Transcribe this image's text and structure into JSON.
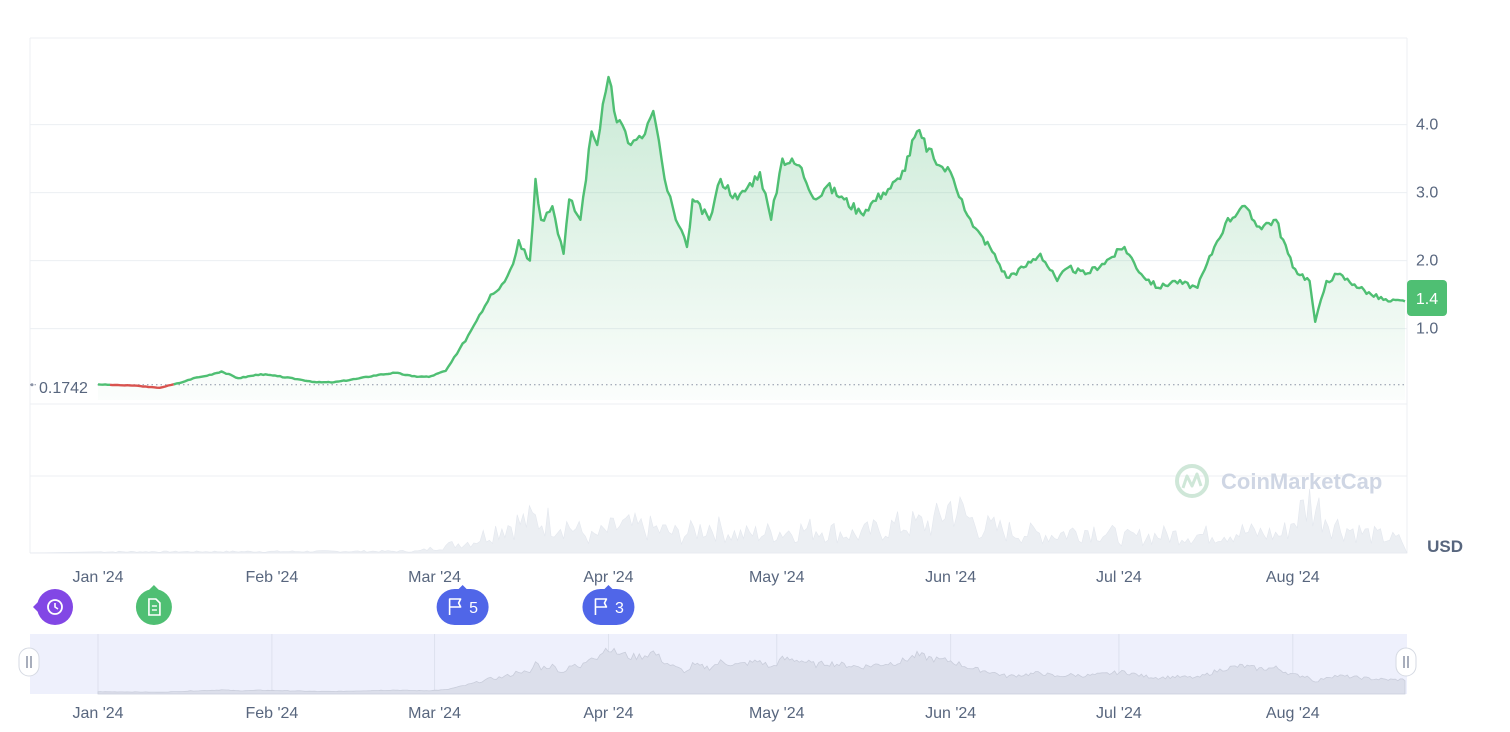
{
  "chart_data": {
    "type": "area",
    "currency": "USD",
    "baseline_label": "0.1742",
    "baseline_value": 0.1742,
    "current_price_label": "1.4",
    "current_price": 1.4,
    "ylim": [
      -0.05,
      4.95
    ],
    "y_ticks": [
      "1.0",
      "2.0",
      "3.0",
      "4.0"
    ],
    "y_tick_values": [
      1.0,
      2.0,
      3.0,
      4.0
    ],
    "x_range": [
      "2024-01-01",
      "2024-08-21"
    ],
    "x_ticks": [
      "Jan '24",
      "Feb '24",
      "Mar '24",
      "Apr '24",
      "May '24",
      "Jun '24",
      "Jul '24",
      "Aug '24"
    ],
    "x_tick_dates": [
      "2024-01-01",
      "2024-02-01",
      "2024-03-01",
      "2024-04-01",
      "2024-05-01",
      "2024-06-01",
      "2024-07-01",
      "2024-08-01"
    ],
    "grid": true,
    "colors": {
      "up": "#16c784",
      "line": "#4fbf73",
      "down": "#d9534f",
      "fill": "#3fb36a",
      "volume": "#eceff3",
      "navigator": "#eef0fc"
    },
    "price": {
      "x": [
        "2024-01-01",
        "2024-01-04",
        "2024-01-08",
        "2024-01-10",
        "2024-01-12",
        "2024-01-14",
        "2024-01-16",
        "2024-01-18",
        "2024-01-20",
        "2024-01-23",
        "2024-01-26",
        "2024-01-30",
        "2024-02-02",
        "2024-02-06",
        "2024-02-09",
        "2024-02-12",
        "2024-02-16",
        "2024-02-20",
        "2024-02-23",
        "2024-02-26",
        "2024-02-29",
        "2024-03-03",
        "2024-03-05",
        "2024-03-07",
        "2024-03-09",
        "2024-03-11",
        "2024-03-13",
        "2024-03-15",
        "2024-03-16",
        "2024-03-18",
        "2024-03-19",
        "2024-03-20",
        "2024-03-22",
        "2024-03-24",
        "2024-03-25",
        "2024-03-27",
        "2024-03-29",
        "2024-03-30",
        "2024-03-31",
        "2024-04-01",
        "2024-04-02",
        "2024-04-04",
        "2024-04-05",
        "2024-04-07",
        "2024-04-09",
        "2024-04-11",
        "2024-04-13",
        "2024-04-15",
        "2024-04-16",
        "2024-04-19",
        "2024-04-21",
        "2024-04-24",
        "2024-04-28",
        "2024-04-30",
        "2024-05-02",
        "2024-05-05",
        "2024-05-08",
        "2024-05-10",
        "2024-05-13",
        "2024-05-16",
        "2024-05-20",
        "2024-05-23",
        "2024-05-26",
        "2024-05-29",
        "2024-05-30",
        "2024-06-01",
        "2024-06-03",
        "2024-06-05",
        "2024-06-08",
        "2024-06-11",
        "2024-06-14",
        "2024-06-17",
        "2024-06-20",
        "2024-06-22",
        "2024-06-25",
        "2024-06-28",
        "2024-07-02",
        "2024-07-05",
        "2024-07-08",
        "2024-07-11",
        "2024-07-15",
        "2024-07-18",
        "2024-07-20",
        "2024-07-23",
        "2024-07-26",
        "2024-07-29",
        "2024-08-01",
        "2024-08-04",
        "2024-08-05",
        "2024-08-07",
        "2024-08-09",
        "2024-08-12",
        "2024-08-15",
        "2024-08-18",
        "2024-08-21"
      ],
      "y": [
        0.18,
        0.17,
        0.16,
        0.14,
        0.13,
        0.17,
        0.21,
        0.27,
        0.3,
        0.37,
        0.27,
        0.33,
        0.3,
        0.25,
        0.21,
        0.21,
        0.26,
        0.32,
        0.35,
        0.3,
        0.29,
        0.38,
        0.63,
        0.9,
        1.2,
        1.5,
        1.65,
        1.95,
        2.3,
        2.0,
        3.2,
        2.6,
        2.8,
        2.1,
        2.9,
        2.6,
        3.9,
        3.7,
        4.3,
        4.7,
        4.2,
        3.9,
        3.7,
        3.8,
        4.2,
        3.2,
        2.6,
        2.2,
        2.9,
        2.6,
        3.2,
        2.9,
        3.3,
        2.6,
        3.5,
        3.4,
        2.9,
        3.1,
        2.9,
        2.7,
        3.0,
        3.2,
        3.9,
        3.5,
        3.4,
        3.3,
        2.9,
        2.5,
        2.2,
        1.75,
        1.9,
        2.1,
        1.7,
        1.9,
        1.8,
        1.95,
        2.2,
        1.8,
        1.6,
        1.7,
        1.6,
        2.2,
        2.55,
        2.8,
        2.5,
        2.6,
        1.9,
        1.7,
        1.1,
        1.7,
        1.8,
        1.65,
        1.5,
        1.4,
        1.4
      ]
    },
    "volume_pct": {
      "x": [
        "2024-01-01",
        "2024-02-27",
        "2024-03-03",
        "2024-03-08",
        "2024-03-13",
        "2024-03-19",
        "2024-03-24",
        "2024-03-29",
        "2024-04-03",
        "2024-04-09",
        "2024-04-14",
        "2024-04-19",
        "2024-04-24",
        "2024-05-01",
        "2024-05-08",
        "2024-05-15",
        "2024-05-22",
        "2024-05-29",
        "2024-06-01",
        "2024-06-06",
        "2024-06-12",
        "2024-06-19",
        "2024-06-26",
        "2024-07-02",
        "2024-07-09",
        "2024-07-16",
        "2024-07-23",
        "2024-07-30",
        "2024-08-04",
        "2024-08-09",
        "2024-08-15",
        "2024-08-21"
      ],
      "y": [
        2,
        3,
        12,
        20,
        45,
        55,
        50,
        25,
        45,
        40,
        30,
        45,
        30,
        35,
        40,
        30,
        45,
        50,
        80,
        45,
        35,
        30,
        40,
        25,
        30,
        30,
        35,
        30,
        85,
        45,
        30,
        20
      ]
    },
    "events": [
      {
        "type": "history",
        "date": "2024-01-01"
      },
      {
        "type": "document",
        "date": "2024-01-14"
      },
      {
        "type": "flag",
        "count": "5",
        "date": "2024-03-06"
      },
      {
        "type": "flag",
        "count": "3",
        "date": "2024-04-01"
      }
    ],
    "watermark": "CoinMarketCap"
  }
}
